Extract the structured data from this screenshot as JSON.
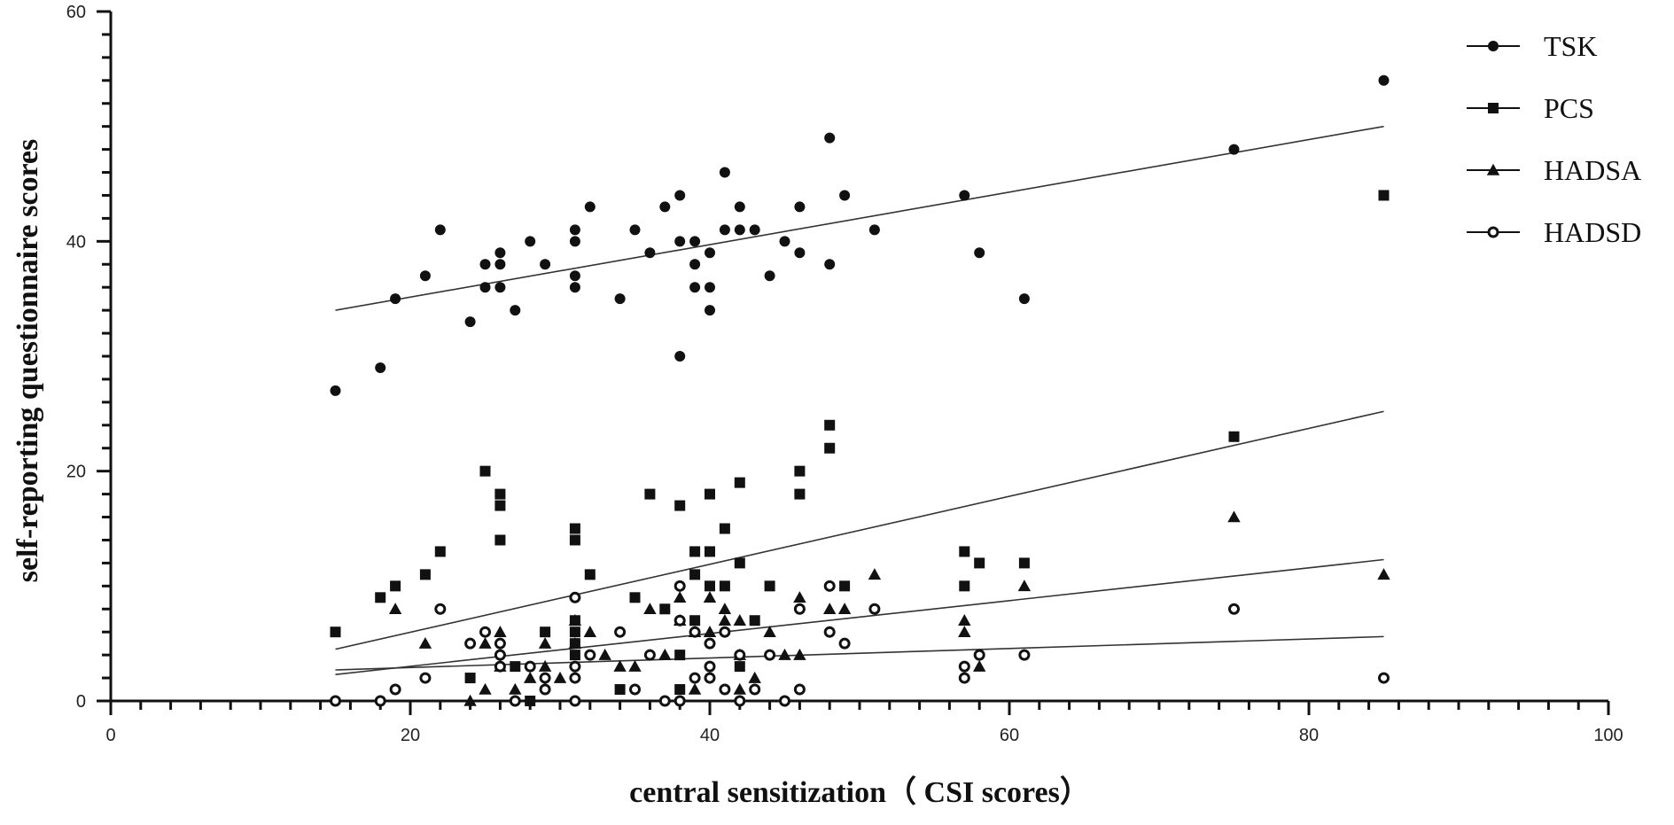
{
  "chart_data": {
    "type": "scatter",
    "title": "",
    "xlabel": "central sensitization（ CSI scores）",
    "ylabel": "self-reporting questionnaire scores",
    "xlim": [
      0,
      100
    ],
    "ylim": [
      0,
      60
    ],
    "x_ticks": [
      0,
      20,
      40,
      60,
      80,
      100
    ],
    "y_ticks": [
      0,
      20,
      40,
      60
    ],
    "x_minor_step": 2,
    "y_minor_step": 2,
    "grid": false,
    "legend_position": "top-right",
    "colors": {
      "mark": "#111111",
      "fit_line": "#333333"
    },
    "series": [
      {
        "name": "TSK",
        "marker": "circle",
        "points": [
          [
            15,
            27
          ],
          [
            18,
            29
          ],
          [
            19,
            35
          ],
          [
            21,
            37
          ],
          [
            22,
            41
          ],
          [
            24,
            33
          ],
          [
            25,
            36
          ],
          [
            25,
            38
          ],
          [
            26,
            36
          ],
          [
            26,
            38
          ],
          [
            26,
            39
          ],
          [
            27,
            34
          ],
          [
            28,
            40
          ],
          [
            29,
            38
          ],
          [
            31,
            36
          ],
          [
            31,
            37
          ],
          [
            31,
            40
          ],
          [
            31,
            41
          ],
          [
            32,
            43
          ],
          [
            34,
            35
          ],
          [
            35,
            41
          ],
          [
            36,
            39
          ],
          [
            37,
            43
          ],
          [
            38,
            30
          ],
          [
            38,
            40
          ],
          [
            38,
            44
          ],
          [
            39,
            36
          ],
          [
            39,
            38
          ],
          [
            39,
            40
          ],
          [
            40,
            34
          ],
          [
            40,
            36
          ],
          [
            40,
            39
          ],
          [
            41,
            41
          ],
          [
            41,
            46
          ],
          [
            42,
            41
          ],
          [
            42,
            43
          ],
          [
            43,
            41
          ],
          [
            44,
            37
          ],
          [
            45,
            40
          ],
          [
            46,
            39
          ],
          [
            46,
            43
          ],
          [
            48,
            38
          ],
          [
            48,
            49
          ],
          [
            49,
            44
          ],
          [
            51,
            41
          ],
          [
            57,
            44
          ],
          [
            58,
            39
          ],
          [
            61,
            35
          ],
          [
            75,
            48
          ],
          [
            85,
            54
          ]
        ],
        "fit": [
          [
            15,
            34
          ],
          [
            85,
            50
          ]
        ]
      },
      {
        "name": "PCS",
        "marker": "square",
        "points": [
          [
            15,
            6
          ],
          [
            18,
            9
          ],
          [
            19,
            10
          ],
          [
            21,
            11
          ],
          [
            22,
            13
          ],
          [
            24,
            2
          ],
          [
            25,
            20
          ],
          [
            26,
            14
          ],
          [
            26,
            17
          ],
          [
            26,
            18
          ],
          [
            27,
            3
          ],
          [
            28,
            0
          ],
          [
            29,
            6
          ],
          [
            31,
            4
          ],
          [
            31,
            5
          ],
          [
            31,
            6
          ],
          [
            31,
            7
          ],
          [
            31,
            14
          ],
          [
            31,
            15
          ],
          [
            32,
            11
          ],
          [
            34,
            1
          ],
          [
            35,
            9
          ],
          [
            36,
            18
          ],
          [
            37,
            8
          ],
          [
            38,
            1
          ],
          [
            38,
            4
          ],
          [
            38,
            17
          ],
          [
            39,
            7
          ],
          [
            39,
            11
          ],
          [
            39,
            13
          ],
          [
            40,
            10
          ],
          [
            40,
            13
          ],
          [
            40,
            18
          ],
          [
            41,
            10
          ],
          [
            41,
            15
          ],
          [
            42,
            3
          ],
          [
            42,
            12
          ],
          [
            42,
            19
          ],
          [
            43,
            7
          ],
          [
            44,
            10
          ],
          [
            46,
            18
          ],
          [
            46,
            20
          ],
          [
            48,
            22
          ],
          [
            48,
            24
          ],
          [
            49,
            10
          ],
          [
            57,
            10
          ],
          [
            57,
            13
          ],
          [
            58,
            12
          ],
          [
            61,
            12
          ],
          [
            75,
            23
          ],
          [
            85,
            44
          ]
        ],
        "fit": [
          [
            15,
            4.5
          ],
          [
            85,
            25.2
          ]
        ]
      },
      {
        "name": "HADSA",
        "marker": "triangle",
        "points": [
          [
            19,
            8
          ],
          [
            21,
            5
          ],
          [
            24,
            0
          ],
          [
            25,
            1
          ],
          [
            25,
            5
          ],
          [
            26,
            3
          ],
          [
            26,
            6
          ],
          [
            27,
            1
          ],
          [
            28,
            2
          ],
          [
            29,
            3
          ],
          [
            29,
            5
          ],
          [
            30,
            2
          ],
          [
            31,
            7
          ],
          [
            31,
            5
          ],
          [
            32,
            6
          ],
          [
            33,
            4
          ],
          [
            34,
            3
          ],
          [
            35,
            3
          ],
          [
            36,
            8
          ],
          [
            37,
            4
          ],
          [
            38,
            7
          ],
          [
            38,
            9
          ],
          [
            39,
            1
          ],
          [
            39,
            6
          ],
          [
            40,
            9
          ],
          [
            40,
            6
          ],
          [
            41,
            7
          ],
          [
            41,
            8
          ],
          [
            42,
            1
          ],
          [
            42,
            4
          ],
          [
            42,
            7
          ],
          [
            43,
            2
          ],
          [
            44,
            6
          ],
          [
            45,
            4
          ],
          [
            46,
            4
          ],
          [
            46,
            9
          ],
          [
            48,
            8
          ],
          [
            49,
            8
          ],
          [
            51,
            11
          ],
          [
            57,
            6
          ],
          [
            57,
            7
          ],
          [
            58,
            3
          ],
          [
            61,
            10
          ],
          [
            75,
            16
          ],
          [
            85,
            11
          ]
        ],
        "fit": [
          [
            15,
            2.3
          ],
          [
            85,
            12.3
          ]
        ]
      },
      {
        "name": "HADSD",
        "marker": "open-circle",
        "points": [
          [
            15,
            0
          ],
          [
            18,
            0
          ],
          [
            19,
            1
          ],
          [
            21,
            2
          ],
          [
            22,
            8
          ],
          [
            24,
            5
          ],
          [
            25,
            6
          ],
          [
            26,
            3
          ],
          [
            26,
            4
          ],
          [
            26,
            5
          ],
          [
            27,
            0
          ],
          [
            28,
            3
          ],
          [
            29,
            1
          ],
          [
            29,
            2
          ],
          [
            31,
            0
          ],
          [
            31,
            2
          ],
          [
            31,
            3
          ],
          [
            31,
            9
          ],
          [
            32,
            4
          ],
          [
            34,
            6
          ],
          [
            35,
            1
          ],
          [
            36,
            4
          ],
          [
            37,
            0
          ],
          [
            38,
            0
          ],
          [
            38,
            7
          ],
          [
            38,
            10
          ],
          [
            39,
            2
          ],
          [
            39,
            6
          ],
          [
            40,
            2
          ],
          [
            40,
            3
          ],
          [
            40,
            5
          ],
          [
            41,
            1
          ],
          [
            41,
            6
          ],
          [
            42,
            0
          ],
          [
            42,
            4
          ],
          [
            43,
            1
          ],
          [
            44,
            4
          ],
          [
            45,
            0
          ],
          [
            46,
            1
          ],
          [
            46,
            8
          ],
          [
            48,
            6
          ],
          [
            48,
            10
          ],
          [
            49,
            5
          ],
          [
            51,
            8
          ],
          [
            57,
            2
          ],
          [
            57,
            3
          ],
          [
            58,
            4
          ],
          [
            61,
            4
          ],
          [
            75,
            8
          ],
          [
            85,
            2
          ]
        ],
        "fit": [
          [
            15,
            2.7
          ],
          [
            85,
            5.6
          ]
        ]
      }
    ]
  }
}
